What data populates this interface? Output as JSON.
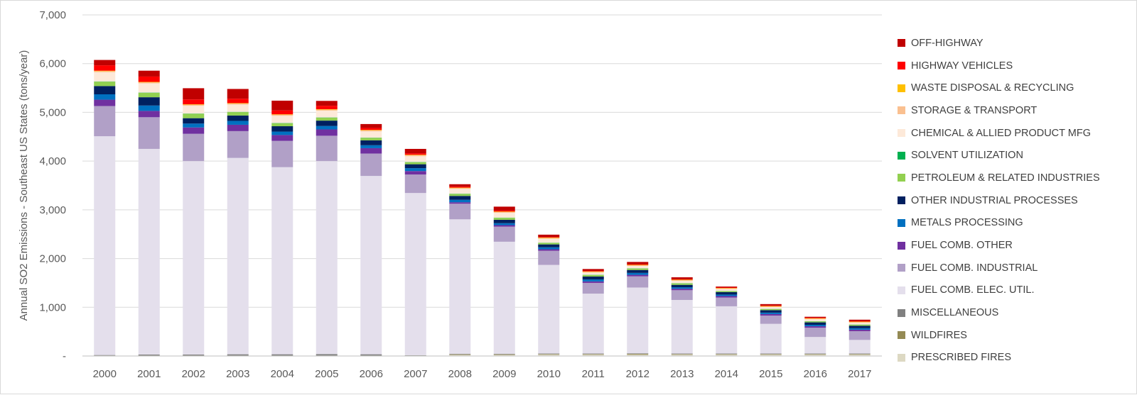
{
  "chart_data": {
    "type": "bar",
    "stacked": true,
    "title": "",
    "xlabel": "",
    "ylabel": "Annual SO2 Emissions - Southeast US States  (tons/year)",
    "ylim": [
      0,
      7000
    ],
    "yticks": [
      0,
      1000,
      2000,
      3000,
      4000,
      5000,
      6000,
      7000
    ],
    "ytick_labels": [
      "-",
      "1,000",
      "2,000",
      "3,000",
      "4,000",
      "5,000",
      "6,000",
      "7,000"
    ],
    "grid": true,
    "legend_position": "right",
    "categories": [
      "2000",
      "2001",
      "2002",
      "2003",
      "2004",
      "2005",
      "2006",
      "2007",
      "2008",
      "2009",
      "2010",
      "2011",
      "2012",
      "2013",
      "2014",
      "2015",
      "2016",
      "2017"
    ],
    "series": [
      {
        "name": "PRESCRIBED FIRES",
        "color": "#ddd9c3",
        "values": [
          5,
          5,
          5,
          5,
          5,
          5,
          5,
          5,
          25,
          25,
          30,
          30,
          30,
          30,
          30,
          30,
          30,
          30
        ]
      },
      {
        "name": "WILDFIRES",
        "color": "#948a54",
        "values": [
          5,
          5,
          5,
          5,
          5,
          5,
          5,
          5,
          10,
          10,
          10,
          10,
          15,
          10,
          10,
          10,
          10,
          10
        ]
      },
      {
        "name": "MISCELLANEOUS",
        "color": "#808080",
        "values": [
          10,
          20,
          20,
          25,
          25,
          30,
          25,
          5,
          10,
          10,
          10,
          10,
          10,
          10,
          10,
          10,
          10,
          10
        ]
      },
      {
        "name": "FUEL COMB. ELEC. UTIL.",
        "color": "#e4dfec",
        "values": [
          4490,
          4220,
          3970,
          4030,
          3840,
          3960,
          3660,
          3330,
          2760,
          2300,
          1820,
          1230,
          1350,
          1100,
          970,
          610,
          340,
          280
        ]
      },
      {
        "name": "FUEL COMB. INDUSTRIAL",
        "color": "#b1a0c7",
        "values": [
          620,
          650,
          560,
          550,
          540,
          520,
          460,
          380,
          320,
          310,
          290,
          220,
          230,
          200,
          180,
          170,
          190,
          180
        ]
      },
      {
        "name": "FUEL COMB. OTHER",
        "color": "#7030a0",
        "values": [
          130,
          130,
          130,
          130,
          120,
          130,
          110,
          70,
          30,
          30,
          30,
          30,
          30,
          30,
          30,
          30,
          30,
          30
        ]
      },
      {
        "name": "METALS PROCESSING",
        "color": "#0070c0",
        "values": [
          110,
          110,
          80,
          80,
          70,
          70,
          60,
          60,
          50,
          40,
          40,
          40,
          40,
          30,
          30,
          30,
          30,
          30
        ]
      },
      {
        "name": "OTHER INDUSTRIAL PROCESSES",
        "color": "#002060",
        "values": [
          170,
          170,
          110,
          110,
          110,
          110,
          100,
          80,
          80,
          70,
          60,
          60,
          60,
          50,
          50,
          50,
          50,
          50
        ]
      },
      {
        "name": "PETROLEUM & RELATED INDUSTRIES",
        "color": "#92d050",
        "values": [
          90,
          90,
          90,
          70,
          60,
          60,
          50,
          40,
          40,
          40,
          30,
          30,
          30,
          30,
          20,
          20,
          20,
          20
        ]
      },
      {
        "name": "SOLVENT UTILIZATION",
        "color": "#00b050",
        "values": [
          5,
          5,
          5,
          5,
          5,
          5,
          5,
          5,
          5,
          5,
          5,
          5,
          5,
          5,
          5,
          5,
          5,
          5
        ]
      },
      {
        "name": "CHEMICAL & ALLIED PRODUCT MFG",
        "color": "#fde9d9",
        "values": [
          190,
          190,
          160,
          150,
          150,
          140,
          130,
          120,
          100,
          100,
          80,
          50,
          50,
          50,
          40,
          40,
          40,
          40
        ]
      },
      {
        "name": "STORAGE & TRANSPORT",
        "color": "#fac090",
        "values": [
          20,
          20,
          20,
          20,
          20,
          20,
          20,
          20,
          15,
          15,
          15,
          10,
          10,
          10,
          10,
          10,
          10,
          10
        ]
      },
      {
        "name": "WASTE DISPOSAL & RECYCLING",
        "color": "#ffc000",
        "values": [
          10,
          10,
          10,
          10,
          10,
          10,
          10,
          10,
          10,
          10,
          10,
          10,
          10,
          10,
          10,
          10,
          10,
          10
        ]
      },
      {
        "name": "HIGHWAY VEHICLES",
        "color": "#ff0000",
        "values": [
          110,
          110,
          100,
          90,
          80,
          70,
          40,
          30,
          20,
          20,
          10,
          10,
          10,
          10,
          10,
          10,
          10,
          10
        ]
      },
      {
        "name": "OFF-HIGHWAY",
        "color": "#c00000",
        "values": [
          110,
          120,
          230,
          200,
          200,
          100,
          80,
          90,
          50,
          80,
          50,
          40,
          50,
          40,
          20,
          30,
          20,
          30
        ]
      }
    ]
  }
}
